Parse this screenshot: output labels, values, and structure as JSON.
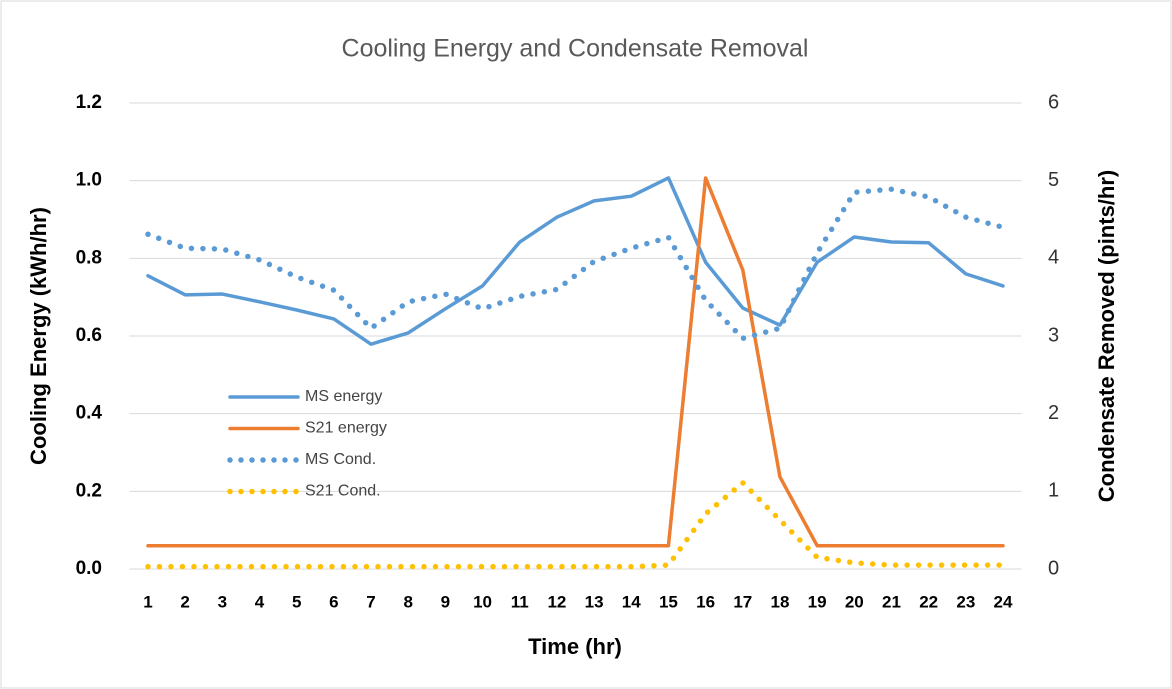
{
  "chart_data": {
    "type": "line",
    "title": "Cooling Energy and Condensate Removal",
    "x_label": "Time (hr)",
    "y_label": "Cooling Energy (kWh/hr)",
    "y2_label": "Condensate Removed (pints/hr)",
    "categories": [
      "1",
      "2",
      "3",
      "4",
      "5",
      "6",
      "7",
      "8",
      "9",
      "10",
      "11",
      "12",
      "13",
      "14",
      "15",
      "16",
      "17",
      "18",
      "19",
      "20",
      "21",
      "22",
      "23",
      "24"
    ],
    "ylim": [
      0,
      1.2
    ],
    "yticks": [
      {
        "value": 0,
        "label": "0.0"
      },
      0.2,
      0.4,
      0.6,
      0.8,
      {
        "value": 1,
        "label": "1.0"
      },
      1.2
    ],
    "y2lim": [
      0,
      6
    ],
    "y2ticks": [
      0,
      1,
      2,
      3,
      4,
      5,
      6
    ],
    "grid": true,
    "legend": "left",
    "series": [
      {
        "name": "MS energy",
        "color": "#5b9bd5",
        "style": "solid",
        "values": [
          0.755,
          0.706,
          0.708,
          0.688,
          0.667,
          0.644,
          0.579,
          0.608,
          0.67,
          0.729,
          0.842,
          0.906,
          0.948,
          0.96,
          1.007,
          0.79,
          0.672,
          0.628,
          0.79,
          0.855,
          0.842,
          0.84,
          0.76,
          0.729
        ]
      },
      {
        "name": "S21 energy",
        "color": "#ed7d31",
        "style": "solid",
        "values": [
          0.06,
          0.06,
          0.06,
          0.06,
          0.06,
          0.06,
          0.06,
          0.06,
          0.06,
          0.06,
          0.06,
          0.06,
          0.06,
          0.06,
          0.06,
          1.007,
          0.77,
          0.237,
          0.06,
          0.06,
          0.06,
          0.06,
          0.06,
          0.06
        ]
      },
      {
        "name": "MS Cond.",
        "color": "#5b9bd5",
        "style": "dotted",
        "axis": "y2",
        "values": [
          4.31,
          4.13,
          4.12,
          3.98,
          3.76,
          3.59,
          3.1,
          3.44,
          3.54,
          3.35,
          3.51,
          3.6,
          3.96,
          4.13,
          4.27,
          3.46,
          2.97,
          3.1,
          4.07,
          4.85,
          4.89,
          4.79,
          4.53,
          4.4
        ]
      },
      {
        "name": "S21 Cond.",
        "color": "#ffc000",
        "style": "dotted",
        "axis": "y2",
        "values": [
          0.03,
          0.03,
          0.03,
          0.03,
          0.03,
          0.03,
          0.03,
          0.03,
          0.03,
          0.03,
          0.03,
          0.03,
          0.03,
          0.03,
          0.05,
          0.71,
          1.11,
          0.63,
          0.15,
          0.08,
          0.05,
          0.05,
          0.05,
          0.05
        ]
      }
    ]
  }
}
